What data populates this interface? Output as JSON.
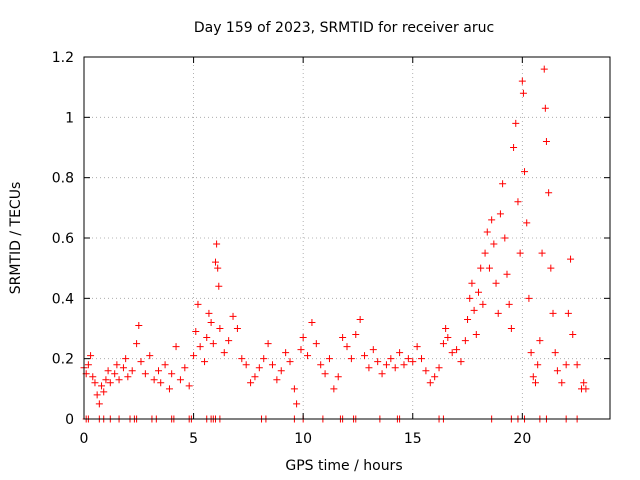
{
  "chart_data": {
    "type": "scatter",
    "title": "Day 159 of 2023, SRMTID for receiver aruc",
    "xlabel": "GPS time / hours",
    "ylabel": "SRMTID / TECUs",
    "xlim": [
      0,
      24
    ],
    "ylim": [
      0,
      1.2
    ],
    "x_ticks": [
      0,
      5,
      10,
      15,
      20
    ],
    "x_tick_labels": [
      "0",
      "5",
      "10",
      "15",
      "20"
    ],
    "y_ticks": [
      0,
      0.2,
      0.4,
      0.6,
      0.8,
      1.0,
      1.2
    ],
    "y_tick_labels": [
      "0",
      "0.2",
      "0.4",
      "0.6",
      "0.8",
      "1",
      "1.2"
    ],
    "grid": true,
    "marker": "+",
    "color": "#ff0000",
    "series": [
      {
        "name": "SRMTID",
        "points": [
          [
            0.0,
            0.17
          ],
          [
            0.1,
            0.15
          ],
          [
            0.2,
            0.18
          ],
          [
            0.3,
            0.21
          ],
          [
            0.4,
            0.14
          ],
          [
            0.5,
            0.12
          ],
          [
            0.6,
            0.08
          ],
          [
            0.7,
            0.05
          ],
          [
            0.8,
            0.11
          ],
          [
            0.9,
            0.09
          ],
          [
            1.0,
            0.13
          ],
          [
            1.1,
            0.16
          ],
          [
            1.2,
            0.12
          ],
          [
            1.4,
            0.15
          ],
          [
            1.5,
            0.18
          ],
          [
            1.6,
            0.13
          ],
          [
            1.8,
            0.17
          ],
          [
            1.9,
            0.2
          ],
          [
            2.0,
            0.14
          ],
          [
            2.2,
            0.16
          ],
          [
            2.4,
            0.25
          ],
          [
            2.5,
            0.31
          ],
          [
            2.6,
            0.19
          ],
          [
            2.8,
            0.15
          ],
          [
            3.0,
            0.21
          ],
          [
            3.2,
            0.13
          ],
          [
            3.4,
            0.16
          ],
          [
            3.5,
            0.12
          ],
          [
            3.7,
            0.18
          ],
          [
            3.9,
            0.1
          ],
          [
            4.0,
            0.15
          ],
          [
            4.2,
            0.24
          ],
          [
            4.4,
            0.13
          ],
          [
            4.6,
            0.17
          ],
          [
            4.8,
            0.11
          ],
          [
            5.0,
            0.21
          ],
          [
            5.1,
            0.29
          ],
          [
            5.2,
            0.38
          ],
          [
            5.3,
            0.24
          ],
          [
            5.5,
            0.19
          ],
          [
            5.6,
            0.27
          ],
          [
            5.7,
            0.35
          ],
          [
            5.8,
            0.32
          ],
          [
            5.9,
            0.25
          ],
          [
            6.0,
            0.52
          ],
          [
            6.05,
            0.58
          ],
          [
            6.1,
            0.5
          ],
          [
            6.15,
            0.44
          ],
          [
            6.2,
            0.3
          ],
          [
            6.4,
            0.22
          ],
          [
            6.6,
            0.26
          ],
          [
            6.8,
            0.34
          ],
          [
            7.0,
            0.3
          ],
          [
            7.2,
            0.2
          ],
          [
            7.4,
            0.18
          ],
          [
            7.6,
            0.12
          ],
          [
            7.8,
            0.14
          ],
          [
            8.0,
            0.17
          ],
          [
            8.2,
            0.2
          ],
          [
            8.4,
            0.25
          ],
          [
            8.6,
            0.18
          ],
          [
            8.8,
            0.13
          ],
          [
            9.0,
            0.16
          ],
          [
            9.2,
            0.22
          ],
          [
            9.4,
            0.19
          ],
          [
            9.6,
            0.1
          ],
          [
            9.7,
            0.05
          ],
          [
            9.9,
            0.23
          ],
          [
            10.0,
            0.27
          ],
          [
            10.2,
            0.21
          ],
          [
            10.4,
            0.32
          ],
          [
            10.6,
            0.25
          ],
          [
            10.8,
            0.18
          ],
          [
            11.0,
            0.15
          ],
          [
            11.2,
            0.2
          ],
          [
            11.4,
            0.1
          ],
          [
            11.6,
            0.14
          ],
          [
            11.8,
            0.27
          ],
          [
            12.0,
            0.24
          ],
          [
            12.2,
            0.2
          ],
          [
            12.4,
            0.28
          ],
          [
            12.6,
            0.33
          ],
          [
            12.8,
            0.21
          ],
          [
            13.0,
            0.17
          ],
          [
            13.2,
            0.23
          ],
          [
            13.4,
            0.19
          ],
          [
            13.6,
            0.15
          ],
          [
            13.8,
            0.18
          ],
          [
            14.0,
            0.2
          ],
          [
            14.2,
            0.17
          ],
          [
            14.4,
            0.22
          ],
          [
            14.6,
            0.18
          ],
          [
            14.8,
            0.2
          ],
          [
            15.0,
            0.19
          ],
          [
            15.2,
            0.24
          ],
          [
            15.4,
            0.2
          ],
          [
            15.6,
            0.16
          ],
          [
            15.8,
            0.12
          ],
          [
            16.0,
            0.14
          ],
          [
            16.2,
            0.17
          ],
          [
            16.4,
            0.25
          ],
          [
            16.5,
            0.3
          ],
          [
            16.6,
            0.27
          ],
          [
            16.8,
            0.22
          ],
          [
            17.0,
            0.23
          ],
          [
            17.2,
            0.19
          ],
          [
            17.4,
            0.26
          ],
          [
            17.5,
            0.33
          ],
          [
            17.6,
            0.4
          ],
          [
            17.7,
            0.45
          ],
          [
            17.8,
            0.36
          ],
          [
            17.9,
            0.28
          ],
          [
            18.0,
            0.42
          ],
          [
            18.1,
            0.5
          ],
          [
            18.2,
            0.38
          ],
          [
            18.3,
            0.55
          ],
          [
            18.4,
            0.62
          ],
          [
            18.5,
            0.5
          ],
          [
            18.6,
            0.66
          ],
          [
            18.7,
            0.58
          ],
          [
            18.8,
            0.45
          ],
          [
            18.9,
            0.35
          ],
          [
            19.0,
            0.68
          ],
          [
            19.1,
            0.78
          ],
          [
            19.2,
            0.6
          ],
          [
            19.3,
            0.48
          ],
          [
            19.4,
            0.38
          ],
          [
            19.5,
            0.3
          ],
          [
            19.6,
            0.9
          ],
          [
            19.7,
            0.98
          ],
          [
            19.8,
            0.72
          ],
          [
            19.9,
            0.55
          ],
          [
            20.0,
            1.12
          ],
          [
            20.05,
            1.08
          ],
          [
            20.1,
            0.82
          ],
          [
            20.2,
            0.65
          ],
          [
            20.3,
            0.4
          ],
          [
            20.4,
            0.22
          ],
          [
            20.5,
            0.14
          ],
          [
            20.6,
            0.12
          ],
          [
            20.7,
            0.18
          ],
          [
            20.8,
            0.26
          ],
          [
            20.9,
            0.55
          ],
          [
            21.0,
            1.16
          ],
          [
            21.05,
            1.03
          ],
          [
            21.1,
            0.92
          ],
          [
            21.2,
            0.75
          ],
          [
            21.3,
            0.5
          ],
          [
            21.4,
            0.35
          ],
          [
            21.5,
            0.22
          ],
          [
            21.6,
            0.16
          ],
          [
            21.8,
            0.12
          ],
          [
            22.0,
            0.18
          ],
          [
            22.1,
            0.35
          ],
          [
            22.2,
            0.53
          ],
          [
            22.3,
            0.28
          ],
          [
            22.5,
            0.18
          ],
          [
            22.7,
            0.1
          ],
          [
            22.8,
            0.12
          ],
          [
            22.9,
            0.1
          ],
          [
            0.1,
            0.0
          ],
          [
            0.2,
            0.0
          ],
          [
            0.7,
            0.0
          ],
          [
            0.9,
            0.0
          ],
          [
            1.2,
            0.0
          ],
          [
            1.6,
            0.0
          ],
          [
            2.1,
            0.0
          ],
          [
            2.3,
            0.0
          ],
          [
            2.4,
            0.0
          ],
          [
            3.1,
            0.0
          ],
          [
            3.3,
            0.0
          ],
          [
            4.0,
            0.0
          ],
          [
            4.1,
            0.0
          ],
          [
            4.8,
            0.0
          ],
          [
            4.9,
            0.0
          ],
          [
            5.6,
            0.0
          ],
          [
            5.8,
            0.0
          ],
          [
            5.9,
            0.0
          ],
          [
            6.0,
            0.0
          ],
          [
            6.2,
            0.0
          ],
          [
            8.1,
            0.0
          ],
          [
            8.3,
            0.0
          ],
          [
            9.6,
            0.0
          ],
          [
            10.0,
            0.0
          ],
          [
            10.9,
            0.0
          ],
          [
            11.7,
            0.0
          ],
          [
            11.8,
            0.0
          ],
          [
            12.3,
            0.0
          ],
          [
            12.4,
            0.0
          ],
          [
            13.5,
            0.0
          ],
          [
            14.3,
            0.0
          ],
          [
            14.4,
            0.0
          ],
          [
            16.2,
            0.0
          ],
          [
            16.4,
            0.0
          ],
          [
            18.6,
            0.0
          ],
          [
            19.5,
            0.0
          ],
          [
            19.8,
            0.0
          ],
          [
            20.1,
            0.0
          ],
          [
            20.8,
            0.0
          ],
          [
            21.1,
            0.0
          ],
          [
            22.0,
            0.0
          ],
          [
            22.5,
            0.0
          ]
        ]
      }
    ]
  }
}
